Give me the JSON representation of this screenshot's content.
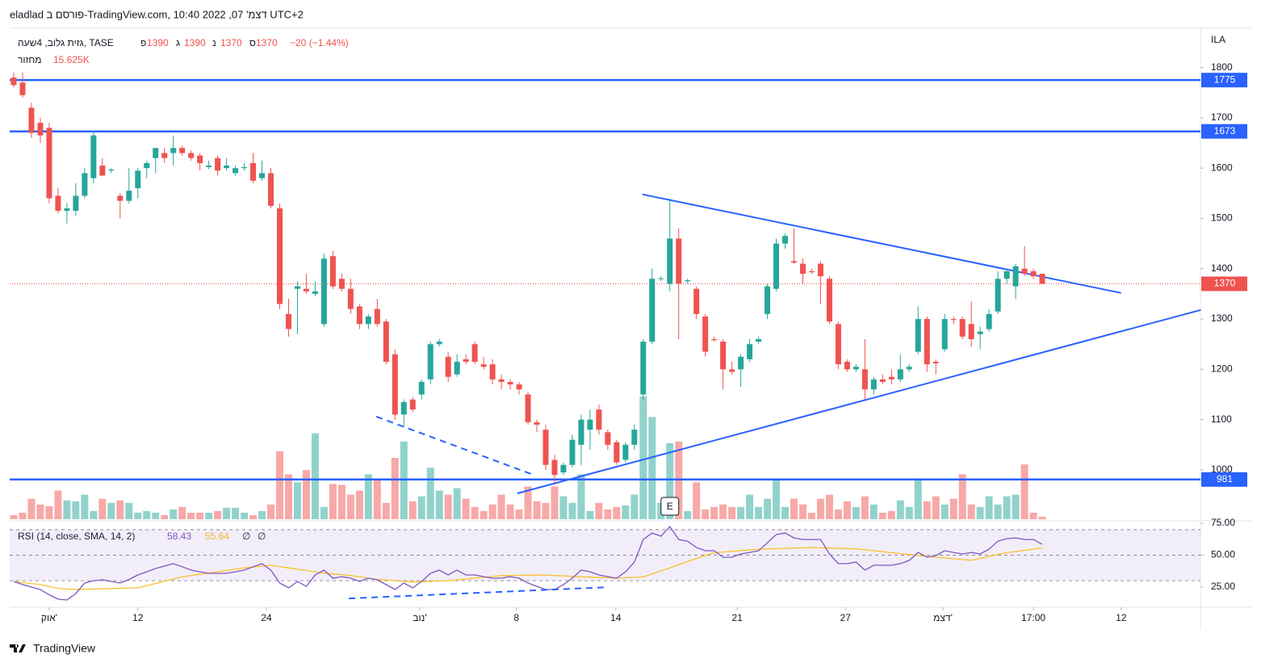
{
  "header": {
    "text": "eladlad פורסם ב-TradingView.com, דצמ' 07, 2022 10:40 UTC+2"
  },
  "footer": {
    "brand": "TradingView"
  },
  "chart_data": {
    "type": "candlestick",
    "legend": {
      "symbol": "גזית גלוב, 4שעה, TASE",
      "ohlc_labels": [
        "פ",
        "ג",
        "נ",
        "ס"
      ],
      "change": "−20 (−1.44%)",
      "volume_name": "מחזור",
      "volume_last": "15.625K"
    },
    "currency": "ILA",
    "ylim": [
      902,
      1878
    ],
    "yticks": [
      1000,
      1100,
      1200,
      1300,
      1400,
      1500,
      1600,
      1700,
      1800
    ],
    "xticks": [
      {
        "value": 4,
        "label": "אוק'"
      },
      {
        "value": 14,
        "label": "12"
      },
      {
        "value": 28.5,
        "label": "24"
      },
      {
        "value": 45.8,
        "label": "נוב'"
      },
      {
        "value": 56.7,
        "label": "8"
      },
      {
        "value": 67.9,
        "label": "14"
      },
      {
        "value": 81.6,
        "label": "21"
      },
      {
        "value": 93.8,
        "label": "27"
      },
      {
        "value": 104.8,
        "label": "דצמ'"
      },
      {
        "value": 115,
        "label": "17:00"
      },
      {
        "value": 124.9,
        "label": "12"
      }
    ],
    "colors": {
      "up": "#26a69a",
      "down": "#ef5350",
      "hline": "#2962ff",
      "trend": "#2962ff",
      "rsi": "#7e57c2",
      "sma": "#fbc02d"
    },
    "candles": [
      [
        1780,
        1790,
        1760,
        1765
      ],
      [
        1770,
        1790,
        1740,
        1745
      ],
      [
        1720,
        1730,
        1660,
        1670
      ],
      [
        1690,
        1700,
        1650,
        1665
      ],
      [
        1680,
        1690,
        1530,
        1540
      ],
      [
        1545,
        1560,
        1510,
        1515
      ],
      [
        1515,
        1530,
        1490,
        1520
      ],
      [
        1515,
        1570,
        1505,
        1545
      ],
      [
        1545,
        1600,
        1540,
        1590
      ],
      [
        1580,
        1675,
        1570,
        1665
      ],
      [
        1605,
        1620,
        1585,
        1585
      ],
      [
        1595,
        1600,
        1590,
        1597
      ],
      [
        1545,
        1550,
        1500,
        1535
      ],
      [
        1535,
        1600,
        1530,
        1555
      ],
      [
        1560,
        1600,
        1540,
        1595
      ],
      [
        1600,
        1615,
        1580,
        1610
      ],
      [
        1620,
        1640,
        1590,
        1640
      ],
      [
        1630,
        1640,
        1610,
        1620
      ],
      [
        1630,
        1665,
        1605,
        1640
      ],
      [
        1640,
        1645,
        1625,
        1630
      ],
      [
        1630,
        1635,
        1615,
        1620
      ],
      [
        1625,
        1630,
        1595,
        1610
      ],
      [
        1602,
        1615,
        1598,
        1605
      ],
      [
        1620,
        1625,
        1585,
        1595
      ],
      [
        1600,
        1620,
        1595,
        1605
      ],
      [
        1590,
        1605,
        1585,
        1600
      ],
      [
        1600,
        1610,
        1595,
        1602
      ],
      [
        1610,
        1630,
        1570,
        1575
      ],
      [
        1580,
        1615,
        1575,
        1590
      ],
      [
        1590,
        1600,
        1520,
        1525
      ],
      [
        1520,
        1530,
        1320,
        1330
      ],
      [
        1310,
        1340,
        1265,
        1280
      ],
      [
        1360,
        1375,
        1270,
        1365
      ],
      [
        1360,
        1390,
        1350,
        1355
      ],
      [
        1350,
        1375,
        1345,
        1355
      ],
      [
        1290,
        1430,
        1285,
        1420
      ],
      [
        1425,
        1435,
        1360,
        1365
      ],
      [
        1380,
        1390,
        1355,
        1360
      ],
      [
        1360,
        1380,
        1310,
        1320
      ],
      [
        1325,
        1330,
        1280,
        1290
      ],
      [
        1290,
        1310,
        1280,
        1305
      ],
      [
        1320,
        1340,
        1285,
        1290
      ],
      [
        1295,
        1300,
        1210,
        1215
      ],
      [
        1230,
        1240,
        1100,
        1110
      ],
      [
        1110,
        1140,
        1085,
        1135
      ],
      [
        1140,
        1145,
        1115,
        1120
      ],
      [
        1150,
        1180,
        1140,
        1175
      ],
      [
        1180,
        1255,
        1170,
        1250
      ],
      [
        1250,
        1260,
        1245,
        1255
      ],
      [
        1225,
        1235,
        1175,
        1185
      ],
      [
        1190,
        1230,
        1185,
        1215
      ],
      [
        1220,
        1230,
        1210,
        1215
      ],
      [
        1250,
        1255,
        1210,
        1215
      ],
      [
        1210,
        1225,
        1200,
        1205
      ],
      [
        1210,
        1220,
        1170,
        1180
      ],
      [
        1180,
        1190,
        1160,
        1175
      ],
      [
        1175,
        1180,
        1160,
        1170
      ],
      [
        1170,
        1175,
        1150,
        1160
      ],
      [
        1150,
        1155,
        1090,
        1095
      ],
      [
        1095,
        1100,
        1075,
        1090
      ],
      [
        1080,
        1090,
        1000,
        1010
      ],
      [
        1020,
        1030,
        970,
        990
      ],
      [
        995,
        1015,
        990,
        1010
      ],
      [
        1010,
        1070,
        1005,
        1060
      ],
      [
        1050,
        1110,
        1010,
        1100
      ],
      [
        1080,
        1120,
        1040,
        1100
      ],
      [
        1120,
        1130,
        1070,
        1080
      ],
      [
        1075,
        1080,
        1040,
        1050
      ],
      [
        1055,
        1060,
        1010,
        1015
      ],
      [
        1020,
        1055,
        1015,
        1050
      ],
      [
        1050,
        1090,
        1040,
        1080
      ],
      [
        1150,
        1260,
        1140,
        1255
      ],
      [
        1255,
        1400,
        1250,
        1380
      ],
      [
        1380,
        1385,
        1375,
        1381
      ],
      [
        1370,
        1540,
        1355,
        1460
      ],
      [
        1460,
        1480,
        1260,
        1370
      ],
      [
        1375,
        1380,
        1370,
        1377
      ],
      [
        1360,
        1365,
        1300,
        1310
      ],
      [
        1305,
        1310,
        1225,
        1235
      ],
      [
        1260,
        1265,
        1255,
        1258
      ],
      [
        1255,
        1260,
        1160,
        1200
      ],
      [
        1200,
        1215,
        1190,
        1195
      ],
      [
        1200,
        1230,
        1165,
        1225
      ],
      [
        1220,
        1260,
        1215,
        1250
      ],
      [
        1255,
        1265,
        1250,
        1260
      ],
      [
        1310,
        1370,
        1300,
        1365
      ],
      [
        1360,
        1460,
        1355,
        1450
      ],
      [
        1450,
        1470,
        1440,
        1465
      ],
      [
        1415,
        1480,
        1410,
        1412
      ],
      [
        1410,
        1420,
        1370,
        1390
      ],
      [
        1395,
        1400,
        1390,
        1393
      ],
      [
        1410,
        1415,
        1330,
        1385
      ],
      [
        1380,
        1385,
        1290,
        1295
      ],
      [
        1290,
        1295,
        1200,
        1210
      ],
      [
        1215,
        1220,
        1195,
        1200
      ],
      [
        1200,
        1210,
        1195,
        1205
      ],
      [
        1200,
        1260,
        1140,
        1160
      ],
      [
        1160,
        1185,
        1150,
        1180
      ],
      [
        1180,
        1190,
        1170,
        1175
      ],
      [
        1185,
        1200,
        1170,
        1180
      ],
      [
        1180,
        1230,
        1175,
        1200
      ],
      [
        1200,
        1210,
        1195,
        1205
      ],
      [
        1235,
        1325,
        1230,
        1300
      ],
      [
        1300,
        1305,
        1195,
        1210
      ],
      [
        1215,
        1220,
        1190,
        1212
      ],
      [
        1240,
        1310,
        1235,
        1300
      ],
      [
        1300,
        1305,
        1290,
        1298
      ],
      [
        1300,
        1305,
        1260,
        1265
      ],
      [
        1290,
        1335,
        1245,
        1260
      ],
      [
        1270,
        1285,
        1240,
        1275
      ],
      [
        1280,
        1320,
        1275,
        1310
      ],
      [
        1315,
        1395,
        1310,
        1380
      ],
      [
        1380,
        1400,
        1370,
        1395
      ],
      [
        1365,
        1410,
        1340,
        1405
      ],
      [
        1400,
        1445,
        1385,
        1390
      ],
      [
        1395,
        1400,
        1380,
        1385
      ],
      [
        1390,
        1390,
        1370,
        1370
      ]
    ],
    "volumes": [
      25,
      40,
      125,
      90,
      80,
      175,
      115,
      110,
      150,
      50,
      125,
      100,
      115,
      100,
      40,
      50,
      40,
      25,
      60,
      75,
      40,
      40,
      40,
      50,
      70,
      70,
      40,
      25,
      50,
      90,
      415,
      275,
      225,
      300,
      525,
      75,
      215,
      210,
      150,
      175,
      275,
      240,
      100,
      375,
      475,
      110,
      140,
      315,
      175,
      150,
      190,
      125,
      75,
      50,
      90,
      150,
      90,
      60,
      200,
      110,
      100,
      200,
      140,
      100,
      275,
      50,
      100,
      60,
      75,
      85,
      150,
      750,
      625,
      100,
      465,
      475,
      50,
      225,
      60,
      75,
      90,
      75,
      75,
      150,
      75,
      125,
      240,
      75,
      125,
      90,
      40,
      125,
      150,
      60,
      110,
      75,
      140,
      90,
      40,
      50,
      115,
      75,
      250,
      110,
      140,
      90,
      125,
      275,
      90,
      75,
      140,
      90,
      140,
      150,
      335,
      40,
      15.625
    ],
    "hlines": [
      1775,
      1673,
      981
    ],
    "trendlines": [
      {
        "points": [
          [
            70.9,
            1547.8
          ],
          [
            124.9,
            1351.8
          ]
        ],
        "style": "solid"
      },
      {
        "points": [
          [
            56.8,
            953.4
          ],
          [
            133.9,
            1318.1
          ]
        ],
        "style": "solid"
      },
      {
        "points": [
          [
            40.9,
            1106
          ],
          [
            58.6,
            990.4
          ]
        ],
        "style": "dashed"
      }
    ],
    "earnings": {
      "label": "E",
      "x": 74
    },
    "rsi": {
      "title": "RSI (14, close, SMA, 14, 2)",
      "extra": [
        "∅",
        "∅"
      ],
      "ylim": [
        9.2,
        76.3
      ],
      "yticks": [
        {
          "value": 75,
          "label": "75.00"
        },
        {
          "value": 50,
          "label": "50.00"
        },
        {
          "value": 25,
          "label": "25.00"
        }
      ],
      "bands": [
        70,
        50,
        30
      ],
      "values": [
        29.4,
        27,
        25,
        23.1,
        19,
        15.5,
        14.9,
        19.9,
        28.2,
        30,
        30.7,
        29.4,
        28.2,
        31,
        34.5,
        37,
        39.6,
        41.5,
        43.4,
        41,
        38.3,
        37,
        35.8,
        35.8,
        35.8,
        37,
        38.3,
        41,
        43.4,
        38.3,
        28.2,
        24.4,
        29.4,
        25.6,
        34.5,
        38.3,
        32,
        33.2,
        32,
        29.4,
        32,
        30.7,
        26.9,
        23.1,
        28.2,
        24.4,
        29.4,
        35.8,
        38.3,
        34.5,
        38.3,
        34.5,
        34.5,
        33.2,
        32,
        32,
        33.2,
        32,
        28.2,
        25.6,
        23.1,
        23.1,
        26.9,
        32,
        38.3,
        37,
        34.5,
        33.2,
        32,
        37,
        44.6,
        62.3,
        67.4,
        64.9,
        72.5,
        62.3,
        61,
        56,
        53.5,
        53.5,
        48.4,
        48.4,
        51,
        52.2,
        53.5,
        59.8,
        66.2,
        67.4,
        63.6,
        62.3,
        62.3,
        62.3,
        51,
        43.4,
        43.4,
        44.6,
        38.3,
        42.1,
        42.1,
        42.1,
        43.4,
        45.9,
        52.2,
        48.4,
        49.7,
        53.5,
        52.2,
        51,
        52.2,
        51,
        54.7,
        61,
        63,
        63.6,
        62.3,
        62.3,
        58.43
      ],
      "sma": [
        29.4,
        28.6,
        27.8,
        27,
        25.5,
        24,
        23.5,
        23.1,
        23.3,
        23.5,
        23.7,
        23.9,
        24.1,
        24.3,
        24.4,
        26.1,
        27.8,
        29.5,
        31.3,
        33,
        34,
        35,
        36,
        37,
        38,
        39,
        40,
        40.7,
        41.4,
        42.1,
        41.1,
        40,
        39,
        38,
        37,
        36,
        35.3,
        34.7,
        34,
        33,
        32,
        31,
        30.5,
        30,
        29.5,
        29,
        29.3,
        29.5,
        29.8,
        30,
        30.7,
        31.3,
        32,
        32.7,
        33.3,
        34,
        34.1,
        34.2,
        34.3,
        34.4,
        34.5,
        34.1,
        33.8,
        33.4,
        33,
        32.8,
        32.5,
        32.3,
        32,
        32.3,
        32.7,
        33,
        35.3,
        37.7,
        40,
        42.5,
        45,
        47.3,
        49.7,
        52,
        52.5,
        53,
        53.6,
        54.2,
        54.7,
        54.9,
        55.1,
        55.4,
        55.6,
        55.8,
        56,
        55.8,
        55.6,
        55.4,
        55.2,
        55,
        54.3,
        53.5,
        52.8,
        52,
        51.3,
        50.5,
        49.8,
        49,
        48.4,
        47.8,
        47.2,
        46.6,
        46,
        47.5,
        49,
        50.5,
        52,
        52.9,
        53.8,
        54.7,
        55.64
      ],
      "trendlines": [
        {
          "points": [
            [
              37.8,
              16.1
            ],
            [
              66.9,
              24.9
            ]
          ],
          "style": "dashed"
        }
      ]
    }
  }
}
